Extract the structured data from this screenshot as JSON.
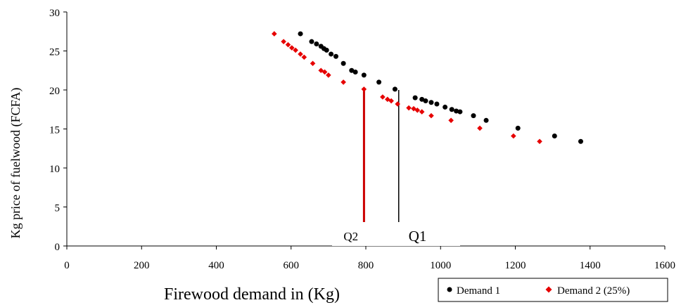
{
  "chart_data": {
    "type": "scatter",
    "title": "",
    "xlabel": "Firewood demand in (Kg)",
    "ylabel": "Kg price of fuelwood (FCFA)",
    "xlim": [
      0,
      1600
    ],
    "ylim": [
      0,
      30
    ],
    "xticks": [
      "0",
      "200",
      "400",
      "600",
      "800",
      "1000",
      "1200",
      "1400",
      "1600"
    ],
    "yticks": [
      "0",
      "5",
      "10",
      "15",
      "20",
      "25",
      "30"
    ],
    "grid": false,
    "legend_position": "bottom-right",
    "series": [
      {
        "name": "Demand 1",
        "color": "#000000",
        "marker": "circle",
        "points": [
          [
            625,
            27.2
          ],
          [
            655,
            26.2
          ],
          [
            668,
            25.9
          ],
          [
            680,
            25.6
          ],
          [
            688,
            25.3
          ],
          [
            695,
            25.1
          ],
          [
            707,
            24.6
          ],
          [
            720,
            24.3
          ],
          [
            740,
            23.4
          ],
          [
            762,
            22.5
          ],
          [
            772,
            22.3
          ],
          [
            795,
            21.9
          ],
          [
            835,
            21.0
          ],
          [
            878,
            20.1
          ],
          [
            932,
            19.0
          ],
          [
            950,
            18.8
          ],
          [
            960,
            18.6
          ],
          [
            975,
            18.4
          ],
          [
            990,
            18.2
          ],
          [
            1012,
            17.8
          ],
          [
            1030,
            17.5
          ],
          [
            1042,
            17.3
          ],
          [
            1052,
            17.2
          ],
          [
            1088,
            16.7
          ],
          [
            1122,
            16.1
          ],
          [
            1207,
            15.1
          ],
          [
            1305,
            14.1
          ],
          [
            1375,
            13.4
          ]
        ]
      },
      {
        "name": "Demand 2 (25%)",
        "color": "#e60000",
        "marker": "diamond",
        "points": [
          [
            555,
            27.2
          ],
          [
            580,
            26.2
          ],
          [
            592,
            25.8
          ],
          [
            602,
            25.4
          ],
          [
            612,
            25.1
          ],
          [
            625,
            24.6
          ],
          [
            635,
            24.2
          ],
          [
            658,
            23.4
          ],
          [
            680,
            22.5
          ],
          [
            690,
            22.3
          ],
          [
            700,
            21.9
          ],
          [
            740,
            21.0
          ],
          [
            795,
            20.1
          ],
          [
            845,
            19.1
          ],
          [
            858,
            18.8
          ],
          [
            868,
            18.6
          ],
          [
            885,
            18.2
          ],
          [
            915,
            17.7
          ],
          [
            928,
            17.6
          ],
          [
            938,
            17.4
          ],
          [
            950,
            17.2
          ],
          [
            975,
            16.7
          ],
          [
            1028,
            16.1
          ],
          [
            1105,
            15.1
          ],
          [
            1195,
            14.1
          ],
          [
            1265,
            13.4
          ]
        ]
      }
    ],
    "annotations": [
      {
        "label": "Q1",
        "x": 888,
        "y_top": 20.0
      },
      {
        "label": "Q2",
        "x": 797,
        "y_top": 20.2
      }
    ]
  }
}
